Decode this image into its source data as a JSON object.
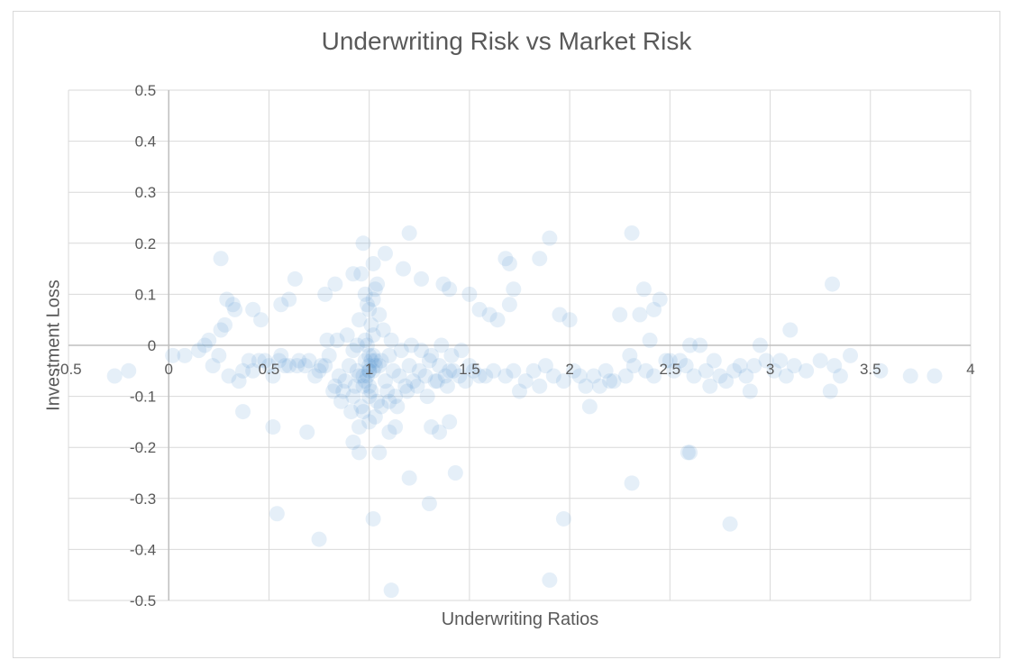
{
  "chart_data": {
    "type": "scatter",
    "title": "Underwriting Risk vs Market Risk",
    "xlabel": "Underwriting Ratios",
    "ylabel": "Investment Loss",
    "xlim": [
      -0.5,
      4
    ],
    "ylim": [
      -0.5,
      0.5
    ],
    "xticks": [
      "-0.5",
      "0",
      "0.5",
      "1",
      "1.5",
      "2",
      "2.5",
      "3",
      "3.5",
      "4"
    ],
    "yticks": [
      "0.5",
      "0.4",
      "0.3",
      "0.2",
      "0.1",
      "0",
      "-0.1",
      "-0.2",
      "-0.3",
      "-0.4",
      "-0.5"
    ],
    "grid": true,
    "legend": "none",
    "marker_color": "#5b9bd5",
    "series": [
      {
        "x": [
          0.98,
          1.02,
          1.05,
          0.95,
          1.0,
          1.08,
          0.92,
          1.12,
          0.97,
          1.03,
          1.1,
          0.9,
          1.15,
          1.01,
          0.94,
          1.06,
          0.99,
          1.2,
          0.88,
          1.25,
          1.3,
          0.85,
          1.35,
          1.4,
          0.8,
          1.45,
          1.5,
          0.75,
          0.7,
          1.55,
          1.0,
          1.04,
          0.96,
          1.09,
          0.93,
          1.13,
          0.91,
          1.18,
          1.22,
          0.87,
          1.28,
          1.33,
          0.83,
          1.38,
          1.42,
          0.78,
          1.48,
          0.73,
          1.52,
          0.68,
          1.58,
          0.65,
          1.62,
          0.6,
          1.68,
          0.55,
          1.72,
          0.5,
          1.78,
          0.45,
          1.02,
          0.98,
          1.07,
          0.94,
          1.11,
          1.16,
          0.89,
          1.21,
          1.26,
          0.84,
          1.31,
          1.36,
          0.79,
          1.41,
          1.46,
          1.0,
          1.03,
          0.97,
          1.06,
          0.95,
          1.1,
          0.92,
          1.14,
          1.19,
          0.86,
          1.24,
          1.29,
          0.82,
          1.34,
          1.39,
          0.95,
          1.0,
          1.05,
          1.02,
          0.98,
          1.04,
          0.96,
          1.01,
          0.99,
          1.03,
          0.37,
          0.4,
          0.3,
          0.25,
          0.22,
          0.35,
          0.42,
          0.48,
          0.52,
          0.58,
          1.82,
          1.88,
          1.92,
          1.97,
          2.02,
          2.08,
          2.12,
          2.18,
          2.22,
          2.28,
          2.32,
          2.38,
          2.42,
          2.48,
          2.52,
          2.58,
          2.62,
          2.68,
          2.72,
          2.78,
          2.82,
          2.88,
          2.92,
          2.98,
          3.02,
          3.08,
          3.12,
          3.18,
          3.25,
          3.32,
          3.4,
          3.55,
          3.7,
          3.82,
          3.35,
          3.3,
          2.95,
          2.6,
          2.35,
          2.05,
          1.95,
          2.0,
          2.15,
          2.25,
          2.45,
          2.55,
          2.65,
          2.75,
          2.85,
          3.05,
          1.75,
          1.85,
          2.1,
          2.2,
          2.3,
          2.4,
          2.5,
          2.7,
          2.9,
          3.1,
          -0.27,
          -0.2,
          0.02,
          0.08,
          0.15,
          0.18,
          0.2,
          0.26,
          0.28,
          0.33,
          0.97,
          1.17,
          1.08,
          1.02,
          0.92,
          0.83,
          0.78,
          0.63,
          0.6,
          0.56,
          1.26,
          1.37,
          1.4,
          1.5,
          1.55,
          1.6,
          1.64,
          1.7,
          1.72,
          1.85,
          1.9,
          2.31,
          2.6,
          3.31,
          1.68,
          1.7,
          0.29,
          2.37,
          2.42,
          1.2,
          0.95,
          1.05,
          1.1,
          0.92,
          1.13,
          1.4,
          1.43,
          1.35,
          1.31,
          1.2,
          0.54,
          0.75,
          1.02,
          1.3,
          1.97,
          2.8,
          1.9,
          1.11,
          2.31,
          2.59,
          0.26,
          0.69,
          0.76,
          0.37,
          0.52,
          0.64,
          0.46,
          0.42,
          0.32,
          0.56,
          1.0,
          0.99,
          1.01,
          1.0,
          0.98,
          1.02,
          1.0,
          1.03,
          0.97,
          1.0
        ],
        "y": [
          -0.03,
          -0.05,
          -0.04,
          -0.06,
          -0.02,
          -0.07,
          -0.01,
          -0.05,
          -0.08,
          -0.03,
          -0.02,
          -0.04,
          -0.06,
          -0.09,
          -0.05,
          -0.03,
          0.0,
          -0.04,
          -0.07,
          -0.05,
          -0.03,
          -0.06,
          -0.04,
          -0.05,
          -0.02,
          -0.06,
          -0.04,
          -0.05,
          -0.03,
          -0.06,
          -0.1,
          -0.11,
          -0.12,
          -0.09,
          -0.08,
          -0.1,
          -0.13,
          -0.08,
          -0.07,
          -0.09,
          -0.06,
          -0.07,
          -0.08,
          -0.06,
          -0.05,
          -0.04,
          -0.07,
          -0.06,
          -0.05,
          -0.04,
          -0.06,
          -0.03,
          -0.05,
          -0.04,
          -0.06,
          -0.03,
          -0.05,
          -0.04,
          -0.07,
          -0.03,
          0.02,
          0.01,
          0.03,
          0.0,
          0.01,
          -0.01,
          0.02,
          0.0,
          -0.01,
          0.01,
          -0.02,
          0.0,
          0.01,
          -0.02,
          -0.01,
          -0.15,
          -0.14,
          -0.13,
          -0.12,
          -0.16,
          -0.11,
          -0.1,
          -0.12,
          -0.09,
          -0.11,
          -0.08,
          -0.1,
          -0.09,
          -0.07,
          -0.08,
          0.05,
          0.07,
          0.06,
          0.09,
          0.1,
          0.12,
          0.14,
          0.04,
          0.08,
          0.11,
          -0.05,
          -0.03,
          -0.06,
          -0.02,
          -0.04,
          -0.07,
          -0.05,
          -0.03,
          -0.06,
          -0.04,
          -0.05,
          -0.04,
          -0.06,
          -0.07,
          -0.05,
          -0.08,
          -0.06,
          -0.05,
          -0.07,
          -0.06,
          -0.04,
          -0.05,
          -0.06,
          -0.03,
          -0.05,
          -0.04,
          -0.06,
          -0.05,
          -0.03,
          -0.07,
          -0.05,
          -0.06,
          -0.04,
          -0.03,
          -0.05,
          -0.06,
          -0.04,
          -0.05,
          -0.03,
          -0.04,
          -0.02,
          -0.05,
          -0.06,
          -0.06,
          -0.06,
          -0.09,
          0.0,
          0.0,
          0.06,
          -0.06,
          0.06,
          0.05,
          -0.08,
          0.06,
          0.09,
          -0.03,
          0.0,
          -0.06,
          -0.04,
          -0.03,
          -0.09,
          -0.08,
          -0.12,
          -0.07,
          -0.02,
          0.01,
          -0.03,
          -0.08,
          -0.09,
          0.03,
          -0.06,
          -0.05,
          -0.02,
          -0.02,
          -0.01,
          0.0,
          0.01,
          0.17,
          0.04,
          0.07,
          0.2,
          0.15,
          0.18,
          0.16,
          0.14,
          0.12,
          0.1,
          0.13,
          0.09,
          0.08,
          0.13,
          0.12,
          0.11,
          0.1,
          0.07,
          0.06,
          0.05,
          0.08,
          0.11,
          0.17,
          0.21,
          0.22,
          -0.21,
          0.12,
          0.17,
          0.16,
          0.09,
          0.11,
          0.07,
          0.22,
          -0.21,
          -0.21,
          -0.17,
          -0.19,
          -0.16,
          -0.15,
          -0.25,
          -0.17,
          -0.16,
          -0.26,
          -0.33,
          -0.38,
          -0.34,
          -0.31,
          -0.34,
          -0.35,
          -0.46,
          -0.48,
          -0.27,
          -0.21,
          0.03,
          -0.17,
          -0.04,
          -0.13,
          -0.16,
          -0.04,
          0.05,
          0.07,
          0.08,
          -0.02,
          -0.04,
          -0.06,
          -0.03,
          -0.05,
          -0.07,
          -0.02,
          -0.08,
          -0.04,
          -0.06,
          -0.05
        ]
      }
    ]
  }
}
